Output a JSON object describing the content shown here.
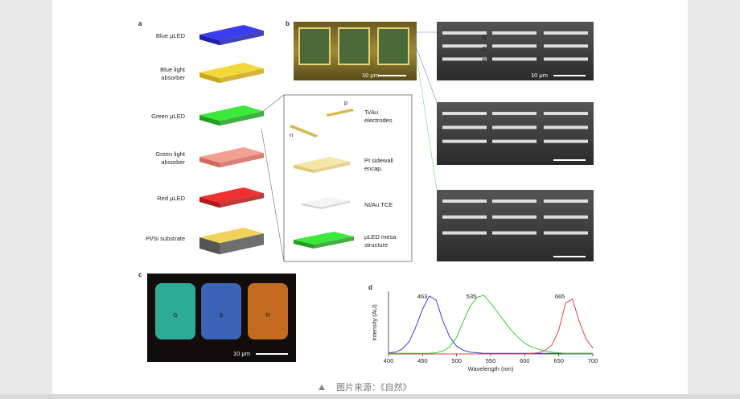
{
  "panel_a": {
    "label": "a",
    "layers": [
      [
        "Blue μLED"
      ],
      [
        "Blue light",
        "absorber"
      ],
      [
        "Green μLED"
      ],
      [
        "Green light",
        "absorber"
      ],
      [
        "Red μLED"
      ],
      [
        "PI/Si substrate"
      ]
    ],
    "inset": {
      "p": "p",
      "n": "n",
      "items": [
        [
          "Ti/Au",
          "electrodes"
        ],
        [
          "PI sidewall",
          "encap."
        ],
        [
          "Ni/Au TCE"
        ],
        [
          "μLED mesa",
          "structure"
        ]
      ]
    }
  },
  "panel_b": {
    "label": "b",
    "optical_scale": "10 μm",
    "sem_labels": [
      "B",
      "G",
      "R"
    ],
    "sem_scale": "10 μm"
  },
  "panel_c": {
    "label": "c",
    "labels": [
      "G",
      "B",
      "R"
    ],
    "scale": "10 μm"
  },
  "chart_data": {
    "type": "line",
    "panel_label": "d",
    "x_label": "Wavelength (nm)",
    "y_label": "Intensity (AU)",
    "x": [
      400,
      410,
      420,
      430,
      440,
      450,
      460,
      470,
      480,
      490,
      500,
      510,
      520,
      530,
      540,
      550,
      560,
      570,
      580,
      590,
      600,
      610,
      620,
      630,
      640,
      650,
      660,
      670,
      680,
      690,
      700
    ],
    "xlim": [
      400,
      700
    ],
    "xticks": [
      400,
      450,
      500,
      550,
      600,
      650,
      700
    ],
    "ylim": [
      0,
      1.05
    ],
    "series": [
      {
        "color": "#3a3ae0",
        "peak": 463,
        "values": [
          0.02,
          0.03,
          0.08,
          0.2,
          0.45,
          0.75,
          0.97,
          0.9,
          0.55,
          0.28,
          0.13,
          0.06,
          0.03,
          0.02,
          0.01,
          0.01,
          0.01,
          0.01,
          0.01,
          0.01,
          0.01,
          0.01,
          0.01,
          0.01,
          0.01,
          0.01,
          0.01,
          0.01,
          0.01,
          0.01,
          0.01
        ]
      },
      {
        "color": "#2fd02f",
        "peak": 535,
        "values": [
          0.01,
          0.01,
          0.01,
          0.01,
          0.01,
          0.01,
          0.01,
          0.02,
          0.05,
          0.12,
          0.28,
          0.55,
          0.8,
          0.95,
          0.98,
          0.85,
          0.7,
          0.55,
          0.4,
          0.28,
          0.18,
          0.12,
          0.08,
          0.05,
          0.03,
          0.02,
          0.01,
          0.01,
          0.01,
          0.01,
          0.01
        ]
      },
      {
        "color": "#e04040",
        "peak": 665,
        "values": [
          0,
          0,
          0,
          0,
          0,
          0,
          0,
          0,
          0,
          0,
          0,
          0,
          0,
          0,
          0,
          0,
          0,
          0,
          0,
          0,
          0,
          0.01,
          0.02,
          0.06,
          0.15,
          0.4,
          0.85,
          0.92,
          0.55,
          0.25,
          0.1
        ]
      }
    ]
  },
  "caption": "图片来源：《自然》"
}
